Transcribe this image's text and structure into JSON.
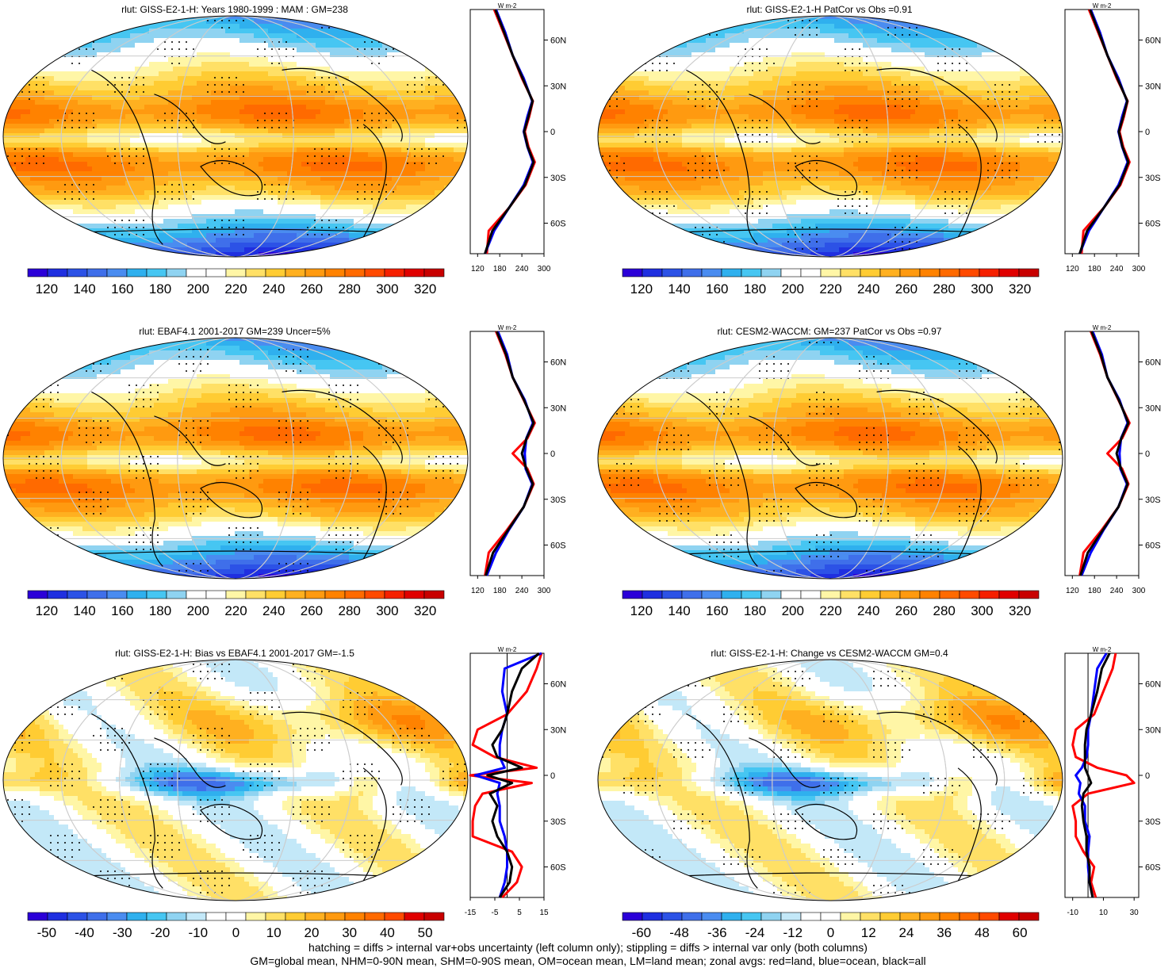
{
  "panels": [
    {
      "title": "rlut: GISS-E2-1-H: Years 1980-1999 : MAM : GM=238",
      "kind": "mean",
      "zonal_ticks": [
        "120",
        "180",
        "240",
        "300"
      ],
      "cbar_labels": [
        "120",
        "140",
        "160",
        "180",
        "200",
        "220",
        "240",
        "260",
        "280",
        "300",
        "320"
      ],
      "lat_labels": [
        "60N",
        "30N",
        "0",
        "30S",
        "60S"
      ],
      "unit": "W m-2"
    },
    {
      "title": "rlut: GISS-E2-1-H PatCor vs Obs =0.91",
      "kind": "mean",
      "zonal_ticks": [
        "120",
        "180",
        "240",
        "300"
      ],
      "cbar_labels": [
        "120",
        "140",
        "160",
        "180",
        "200",
        "220",
        "240",
        "260",
        "280",
        "300",
        "320"
      ],
      "lat_labels": [
        "60N",
        "30N",
        "0",
        "30S",
        "60S"
      ],
      "unit": "W m-2"
    },
    {
      "title": "rlut: EBAF4.1 2001-2017 GM=239 Uncer=5%",
      "kind": "mean",
      "zonal_ticks": [
        "120",
        "180",
        "240",
        "300"
      ],
      "cbar_labels": [
        "120",
        "140",
        "160",
        "180",
        "200",
        "220",
        "240",
        "260",
        "280",
        "300",
        "320"
      ],
      "lat_labels": [
        "60N",
        "30N",
        "0",
        "30S",
        "60S"
      ],
      "unit": "W m-2"
    },
    {
      "title": "rlut: CESM2-WACCM: GM=237 PatCor vs Obs =0.97",
      "kind": "mean",
      "zonal_ticks": [
        "120",
        "180",
        "240",
        "300"
      ],
      "cbar_labels": [
        "120",
        "140",
        "160",
        "180",
        "200",
        "220",
        "240",
        "260",
        "280",
        "300",
        "320"
      ],
      "lat_labels": [
        "60N",
        "30N",
        "0",
        "30S",
        "60S"
      ],
      "unit": "W m-2"
    },
    {
      "title": "rlut: GISS-E2-1-H: Bias vs EBAF4.1 2001-2017 GM=-1.5",
      "kind": "diff",
      "zonal_ticks": [
        "-15",
        "-5",
        "5",
        "15"
      ],
      "cbar_labels": [
        "-50",
        "-40",
        "-30",
        "-20",
        "-10",
        "0",
        "10",
        "20",
        "30",
        "40",
        "50"
      ],
      "lat_labels": [
        "60N",
        "30N",
        "0",
        "30S",
        "60S"
      ],
      "unit": "W m-2"
    },
    {
      "title": "rlut: GISS-E2-1-H: Change vs CESM2-WACCM GM=0.4",
      "kind": "diff",
      "zonal_ticks": [
        "-10",
        "10",
        "30"
      ],
      "cbar_labels": [
        "-60",
        "-48",
        "-36",
        "-24",
        "-12",
        "0",
        "12",
        "24",
        "36",
        "48",
        "60"
      ],
      "lat_labels": [
        "60N",
        "30N",
        "0",
        "30S",
        "60S"
      ],
      "unit": "W m-2"
    }
  ],
  "colors": {
    "mean_scale": [
      "#2b00d8",
      "#1f2fe0",
      "#2c52e6",
      "#3f6fea",
      "#4a8cf0",
      "#2fb0ee",
      "#46c6f2",
      "#8fd3f1",
      "#ffffff",
      "#ffffff",
      "#fff6a6",
      "#ffe066",
      "#ffcc33",
      "#ffb020",
      "#ff9a10",
      "#ff8200",
      "#ff6a00",
      "#ff4a00",
      "#f52000",
      "#e00000",
      "#c80000"
    ],
    "diff_scale": [
      "#2b00d8",
      "#1f2fe0",
      "#2c52e6",
      "#3f6fea",
      "#4a8cf0",
      "#2fb0ee",
      "#46c6f2",
      "#8fd3f1",
      "#c3e8f8",
      "#ffffff",
      "#ffffff",
      "#fff6a6",
      "#ffe066",
      "#ffcc33",
      "#ffb020",
      "#ff9a10",
      "#ff8200",
      "#ff6a00",
      "#ff4a00",
      "#e00000",
      "#c80000"
    ],
    "land": "#ff0000",
    "ocean": "#0000ff",
    "all": "#000000"
  },
  "chart_data": [
    {
      "type": "heatmap",
      "title": "rlut: GISS-E2-1-H: Years 1980-1999 : MAM : GM=238",
      "zonal": {
        "lat": [
          -80,
          -65,
          -50,
          -35,
          -20,
          -10,
          0,
          10,
          20,
          35,
          50,
          65,
          80
        ],
        "land": [
          145,
          150,
          205,
          250,
          275,
          258,
          248,
          260,
          270,
          240,
          215,
          190,
          165
        ],
        "ocean": [
          140,
          165,
          205,
          245,
          270,
          255,
          245,
          255,
          268,
          245,
          215,
          195,
          170
        ],
        "all": [
          140,
          160,
          205,
          248,
          272,
          256,
          246,
          258,
          269,
          242,
          215,
          192,
          168
        ]
      }
    },
    {
      "type": "heatmap",
      "title": "rlut: GISS-E2-1-H PatCor vs Obs =0.91",
      "zonal": {
        "lat": [
          -80,
          -65,
          -50,
          -35,
          -20,
          -10,
          0,
          10,
          20,
          35,
          50,
          65,
          80
        ],
        "land": [
          145,
          150,
          205,
          250,
          275,
          258,
          248,
          260,
          270,
          240,
          215,
          190,
          165
        ],
        "ocean": [
          140,
          165,
          205,
          245,
          270,
          255,
          245,
          255,
          268,
          245,
          215,
          195,
          170
        ],
        "all": [
          140,
          160,
          205,
          248,
          272,
          256,
          246,
          258,
          269,
          242,
          215,
          192,
          168
        ]
      }
    },
    {
      "type": "heatmap",
      "title": "rlut: EBAF4.1 2001-2017 GM=239 Uncer=5%",
      "zonal": {
        "lat": [
          -80,
          -65,
          -50,
          -35,
          -20,
          -10,
          0,
          10,
          20,
          35,
          50,
          65,
          80
        ],
        "land": [
          140,
          150,
          200,
          245,
          272,
          255,
          215,
          255,
          275,
          245,
          215,
          195,
          170
        ],
        "ocean": [
          145,
          170,
          205,
          245,
          268,
          250,
          248,
          252,
          270,
          248,
          215,
          200,
          175
        ],
        "all": [
          142,
          162,
          203,
          245,
          270,
          252,
          240,
          253,
          272,
          246,
          215,
          197,
          172
        ]
      }
    },
    {
      "type": "heatmap",
      "title": "rlut: CESM2-WACCM: GM=237 PatCor vs Obs =0.97",
      "zonal": {
        "lat": [
          -80,
          -65,
          -50,
          -35,
          -20,
          -10,
          0,
          10,
          20,
          35,
          50,
          65,
          80
        ],
        "land": [
          140,
          150,
          200,
          245,
          272,
          255,
          215,
          255,
          275,
          245,
          215,
          195,
          170
        ],
        "ocean": [
          145,
          170,
          205,
          245,
          268,
          250,
          248,
          252,
          270,
          248,
          215,
          200,
          175
        ],
        "all": [
          142,
          162,
          203,
          245,
          270,
          252,
          240,
          253,
          272,
          246,
          215,
          197,
          172
        ]
      }
    },
    {
      "type": "heatmap",
      "title": "rlut: GISS-E2-1-H: Bias vs EBAF4.1 2001-2017 GM=-1.5",
      "zonal": {
        "lat": [
          -80,
          -70,
          -60,
          -50,
          -40,
          -30,
          -20,
          -12,
          -5,
          0,
          5,
          12,
          20,
          30,
          40,
          55,
          70,
          80
        ],
        "land": [
          -2,
          4,
          6,
          2,
          -14,
          -14,
          -13,
          -10,
          10,
          -15,
          12,
          -5,
          -14,
          -12,
          0,
          8,
          12,
          14
        ],
        "ocean": [
          -3,
          -1,
          0,
          0,
          -1,
          -3,
          -3,
          -4,
          -3,
          -13,
          -1,
          -3,
          -3,
          -2,
          0,
          -2,
          -1,
          14
        ],
        "all": [
          -3,
          1,
          2,
          0,
          -4,
          -6,
          -4,
          -7,
          2,
          -8,
          6,
          -4,
          -6,
          -2,
          0,
          2,
          6,
          13
        ]
      }
    },
    {
      "type": "heatmap",
      "title": "rlut: GISS-E2-1-H: Change vs CESM2-WACCM GM=0.4",
      "zonal": {
        "lat": [
          -80,
          -70,
          -60,
          -50,
          -40,
          -30,
          -20,
          -12,
          -5,
          0,
          5,
          12,
          20,
          30,
          40,
          55,
          70,
          80
        ],
        "land": [
          5,
          2,
          4,
          -3,
          -8,
          -8,
          -10,
          0,
          30,
          25,
          6,
          -8,
          -10,
          -8,
          4,
          10,
          16,
          18
        ],
        "ocean": [
          3,
          1,
          0,
          0,
          1,
          -2,
          -2,
          -6,
          -5,
          -8,
          -4,
          -1,
          0,
          0,
          2,
          4,
          6,
          12
        ],
        "all": [
          3,
          1,
          1,
          -1,
          -1,
          -3,
          -4,
          -3,
          2,
          0,
          -2,
          -2,
          -2,
          -1,
          2,
          6,
          9,
          14
        ]
      }
    }
  ],
  "footer": {
    "line1": "hatching = diffs > internal var+obs uncertainty (left column only); stippling = diffs > internal var only (both columns)",
    "line2": "GM=global mean, NHM=0-90N mean, SHM=0-90S mean, OM=ocean mean, LM=land mean; zonal avgs: red=land, blue=ocean, black=all"
  }
}
